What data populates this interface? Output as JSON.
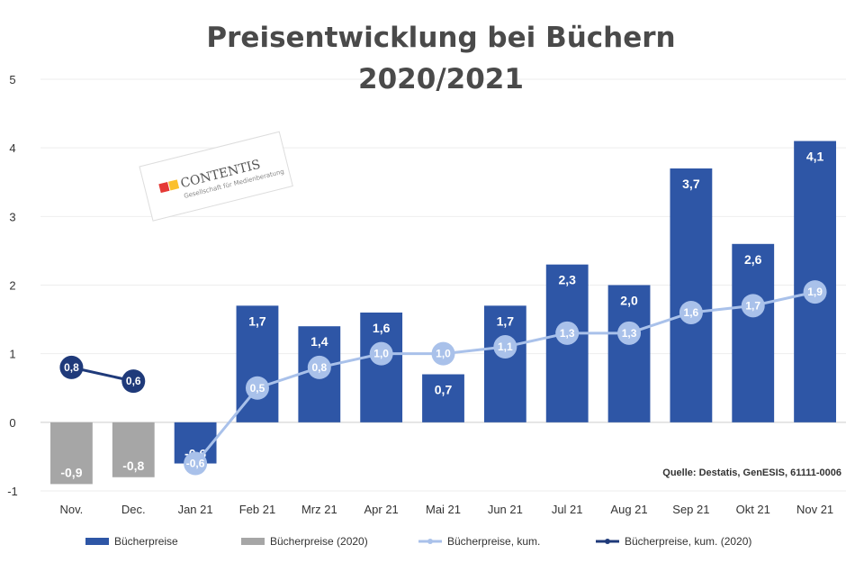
{
  "chart_data": {
    "type": "bar",
    "title": [
      "Preisentwicklung bei Büchern",
      "2020/2021"
    ],
    "categories": [
      "Nov.",
      "Dec.",
      "Jan 21",
      "Feb 21",
      "Mrz 21",
      "Apr 21",
      "Mai 21",
      "Jun 21",
      "Jul 21",
      "Aug 21",
      "Sep 21",
      "Okt 21",
      "Nov 21"
    ],
    "ylim": [
      -1,
      5
    ],
    "yticks": [
      -1,
      0,
      1,
      2,
      3,
      4,
      5
    ],
    "series": [
      {
        "name": "Bücherpreise",
        "kind": "bar",
        "color": "#2e56a6",
        "values": [
          null,
          null,
          -0.6,
          1.7,
          1.4,
          1.6,
          0.7,
          1.7,
          2.3,
          2.0,
          3.7,
          2.6,
          4.1
        ],
        "labels": [
          "",
          "",
          "-0,6",
          "1,7",
          "1,4",
          "1,6",
          "0,7",
          "1,7",
          "2,3",
          "2,0",
          "3,7",
          "2,6",
          "4,1"
        ]
      },
      {
        "name": "Bücherpreise (2020)",
        "kind": "bar",
        "color": "#a6a6a6",
        "values": [
          -0.9,
          -0.8,
          null,
          null,
          null,
          null,
          null,
          null,
          null,
          null,
          null,
          null,
          null
        ],
        "labels": [
          "-0,9",
          "-0,8",
          "",
          "",
          "",
          "",
          "",
          "",
          "",
          "",
          "",
          "",
          ""
        ]
      },
      {
        "name": "Bücherpreise, kum.",
        "kind": "line",
        "color": "#a9c1ea",
        "values": [
          null,
          null,
          -0.6,
          0.5,
          0.8,
          1.0,
          1.0,
          1.1,
          1.3,
          1.3,
          1.6,
          1.7,
          1.9
        ],
        "labels": [
          "",
          "",
          "-0,6",
          "0,5",
          "0,8",
          "1,0",
          "1,0",
          "1,1",
          "1,3",
          "1,3",
          "1,6",
          "1,7",
          "1,9"
        ]
      },
      {
        "name": "Bücherpreise, kum. (2020)",
        "kind": "line",
        "color": "#1f3a7a",
        "values": [
          0.8,
          0.6,
          null,
          null,
          null,
          null,
          null,
          null,
          null,
          null,
          null,
          null,
          null
        ],
        "labels": [
          "0,8",
          "0,6",
          "",
          "",
          "",
          "",
          "",
          "",
          "",
          "",
          "",
          "",
          ""
        ]
      }
    ],
    "source": "Quelle: Destatis, GenESIS, 61111-0006"
  },
  "logo": {
    "text": "CONTENTIS",
    "sub": "Gesellschaft für Medienberatung"
  }
}
